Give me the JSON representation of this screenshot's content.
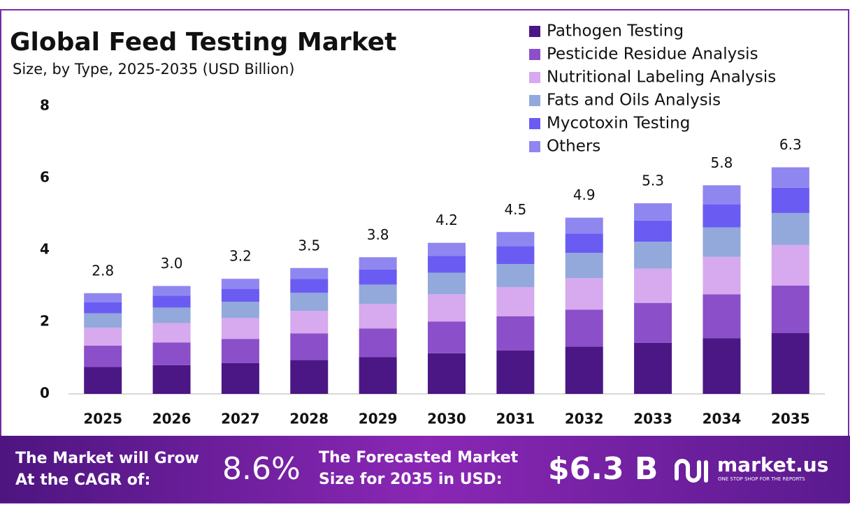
{
  "chart_data": {
    "type": "stacked_bar",
    "title": "Global Feed Testing Market",
    "subtitle": "Size, by Type, 2025-2035 (USD Billion)",
    "categories": [
      "2025",
      "2026",
      "2027",
      "2028",
      "2029",
      "2030",
      "2031",
      "2032",
      "2033",
      "2034",
      "2035"
    ],
    "series": [
      {
        "name": "Pathogen Testing",
        "color": "#4a1785",
        "values": [
          0.75,
          0.8,
          0.86,
          0.94,
          1.02,
          1.13,
          1.21,
          1.31,
          1.42,
          1.55,
          1.69
        ]
      },
      {
        "name": "Pesticide Residue Analysis",
        "color": "#8b4fc9",
        "values": [
          0.59,
          0.63,
          0.67,
          0.74,
          0.8,
          0.88,
          0.95,
          1.03,
          1.11,
          1.22,
          1.32
        ]
      },
      {
        "name": "Nutritional Labeling Analysis",
        "color": "#d7a9ee",
        "values": [
          0.5,
          0.54,
          0.58,
          0.63,
          0.68,
          0.76,
          0.81,
          0.88,
          0.95,
          1.04,
          1.13
        ]
      },
      {
        "name": "Fats and Oils Analysis",
        "color": "#93a8db",
        "values": [
          0.4,
          0.43,
          0.45,
          0.5,
          0.54,
          0.6,
          0.64,
          0.7,
          0.75,
          0.82,
          0.89
        ]
      },
      {
        "name": "Mycotoxin Testing",
        "color": "#6a5cf2",
        "values": [
          0.31,
          0.33,
          0.36,
          0.39,
          0.42,
          0.47,
          0.5,
          0.54,
          0.59,
          0.64,
          0.7
        ]
      },
      {
        "name": "Others",
        "color": "#8f86f0",
        "values": [
          0.25,
          0.27,
          0.28,
          0.3,
          0.34,
          0.36,
          0.39,
          0.44,
          0.48,
          0.53,
          0.57
        ]
      }
    ],
    "totals": [
      2.8,
      3.0,
      3.2,
      3.5,
      3.8,
      4.2,
      4.5,
      4.9,
      5.3,
      5.8,
      6.3
    ],
    "total_labels": [
      "2.8",
      "3.0",
      "3.2",
      "3.5",
      "3.8",
      "4.2",
      "4.5",
      "4.9",
      "5.3",
      "5.8",
      "6.3"
    ],
    "ylim": [
      0,
      8
    ],
    "yticks": [
      0,
      2,
      4,
      6,
      8
    ],
    "grid": false,
    "legend": "top-right"
  },
  "footer": {
    "cagr_text_1": "The Market will Grow",
    "cagr_text_2": "At the CAGR of:",
    "cagr": "8.6%",
    "forecast_text_1": "The Forecasted Market",
    "forecast_text_2": "Size for 2035 in USD:",
    "forecast": "$6.3 B",
    "brand": "market.us",
    "tagline": "ONE STOP SHOP FOR THE REPORTS"
  }
}
